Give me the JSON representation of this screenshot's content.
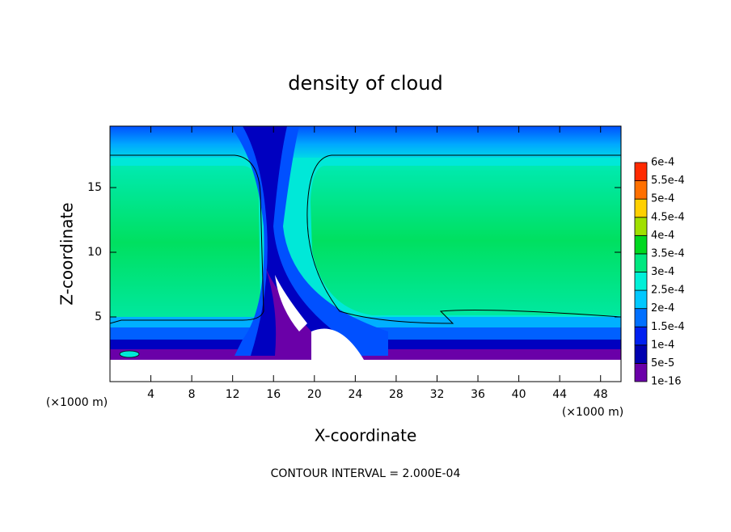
{
  "chart_data": {
    "type": "contour",
    "title": "density of cloud",
    "x_label": "X-coordinate",
    "y_label": "Z-coordinate",
    "y_unit": "(×1000 m)",
    "x_unit": "(×1000 m)",
    "note": "CONTOUR INTERVAL = 2.000E-04",
    "xlim": [
      0,
      50
    ],
    "ylim": [
      0,
      19.75
    ],
    "xticks": [
      4,
      8,
      12,
      16,
      20,
      24,
      28,
      32,
      36,
      40,
      44,
      48
    ],
    "yticks": [
      5,
      10,
      15
    ],
    "colorbar": {
      "ticks": [
        {
          "value": 1e-16,
          "label": "1e-16"
        },
        {
          "value": 5e-05,
          "label": "5e-5"
        },
        {
          "value": 0.0001,
          "label": "1e-4"
        },
        {
          "value": 0.00015,
          "label": "1.5e-4"
        },
        {
          "value": 0.0002,
          "label": "2e-4"
        },
        {
          "value": 0.00025,
          "label": "2.5e-4"
        },
        {
          "value": 0.0003,
          "label": "3e-4"
        },
        {
          "value": 0.00035,
          "label": "3.5e-4"
        },
        {
          "value": 0.0004,
          "label": "4e-4"
        },
        {
          "value": 0.00045,
          "label": "4.5e-4"
        },
        {
          "value": 0.0005,
          "label": "5e-4"
        },
        {
          "value": 0.00055,
          "label": "5.5e-4"
        },
        {
          "value": 0.0006,
          "label": "6e-4"
        }
      ],
      "colors": [
        "#6a00a8",
        "#0000b0",
        "#0020f0",
        "#0070ff",
        "#00c8ff",
        "#00f0d8",
        "#00e880",
        "#00d820",
        "#a0e000",
        "#ffd000",
        "#ff7000",
        "#ff2a00",
        "#ff8080"
      ]
    }
  }
}
